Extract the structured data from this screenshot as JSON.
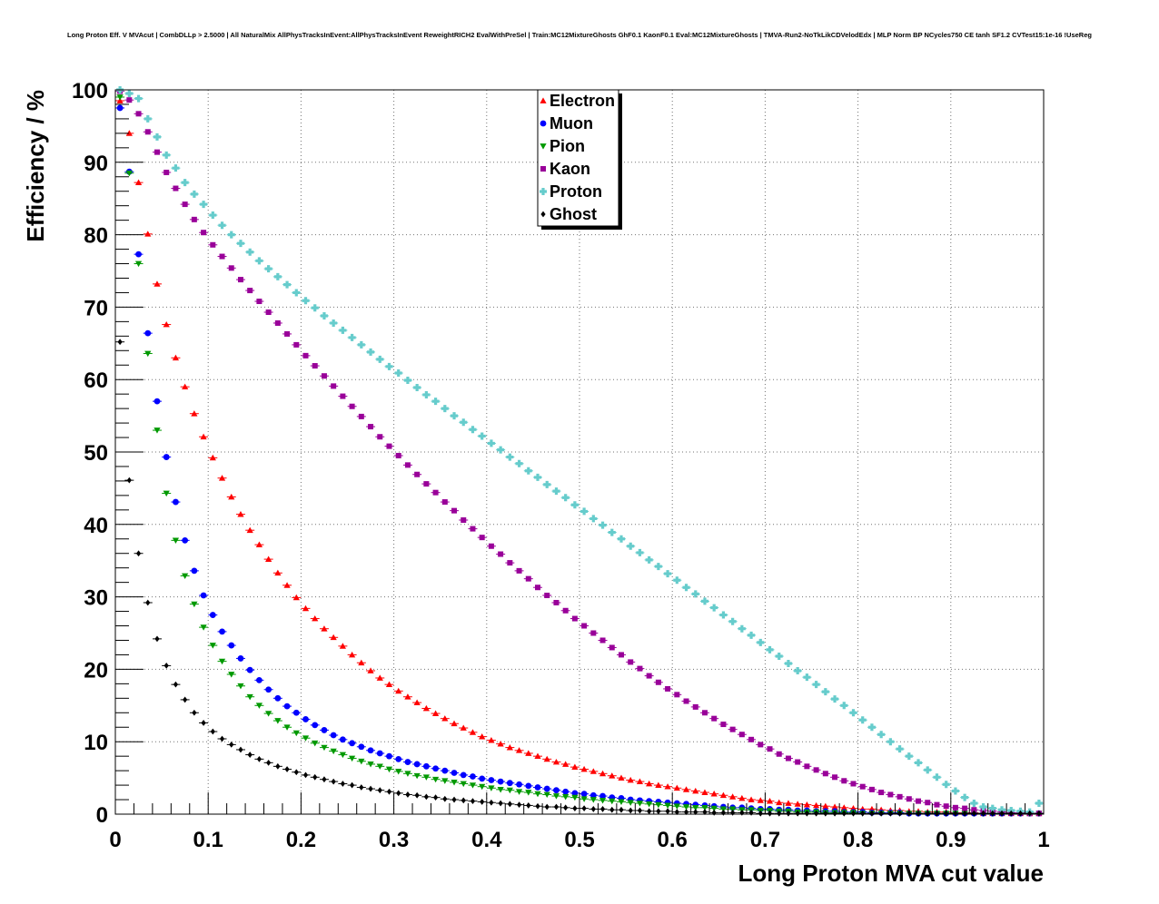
{
  "chart_data": {
    "type": "scatter",
    "title": "Long Proton Eff. V MVAcut | CombDLLp > 2.5000 | All NaturalMix AllPhysTracksInEvent:AllPhysTracksInEvent ReweightRICH2 EvalWithPreSel | Train:MC12MixtureGhosts GhF0.1 KaonF0.1 Eval:MC12MixtureGhosts | TMVA-Run2-NoTkLikCDVelodEdx | MLP Norm BP NCycles750 CE tanh SF1.2 CVTest15:1e-16 !UseReg",
    "xlabel": "Long Proton MVA cut value",
    "ylabel": "Efficiency / %",
    "xlim": [
      0,
      1
    ],
    "ylim": [
      0,
      100
    ],
    "grid": true,
    "legend_position": "top-center",
    "x_ticks": [
      "0",
      "0.1",
      "0.2",
      "0.3",
      "0.4",
      "0.5",
      "0.6",
      "0.7",
      "0.8",
      "0.9",
      "1"
    ],
    "y_ticks": [
      "0",
      "10",
      "20",
      "30",
      "40",
      "50",
      "60",
      "70",
      "80",
      "90",
      "100"
    ],
    "x": [
      0.005,
      0.015,
      0.025,
      0.035,
      0.045,
      0.055,
      0.065,
      0.075,
      0.085,
      0.095,
      0.105,
      0.115,
      0.125,
      0.135,
      0.145,
      0.155,
      0.165,
      0.175,
      0.185,
      0.195,
      0.205,
      0.215,
      0.225,
      0.235,
      0.245,
      0.255,
      0.265,
      0.275,
      0.285,
      0.295,
      0.305,
      0.315,
      0.325,
      0.335,
      0.345,
      0.355,
      0.365,
      0.375,
      0.385,
      0.395,
      0.405,
      0.415,
      0.425,
      0.435,
      0.445,
      0.455,
      0.465,
      0.475,
      0.485,
      0.495,
      0.505,
      0.515,
      0.525,
      0.535,
      0.545,
      0.555,
      0.565,
      0.575,
      0.585,
      0.595,
      0.605,
      0.615,
      0.625,
      0.635,
      0.645,
      0.655,
      0.665,
      0.675,
      0.685,
      0.695,
      0.705,
      0.715,
      0.725,
      0.735,
      0.745,
      0.755,
      0.765,
      0.775,
      0.785,
      0.795,
      0.805,
      0.815,
      0.825,
      0.835,
      0.845,
      0.855,
      0.865,
      0.875,
      0.885,
      0.895,
      0.905,
      0.915,
      0.925,
      0.935,
      0.945,
      0.955,
      0.965,
      0.975,
      0.985,
      0.995
    ],
    "series": [
      {
        "name": "Electron",
        "color": "#ff0000",
        "marker": "triangle-up",
        "values": [
          98.5,
          94.0,
          87.2,
          80.1,
          73.2,
          67.6,
          63.0,
          59.0,
          55.3,
          52.1,
          49.2,
          46.4,
          43.8,
          41.4,
          39.2,
          37.2,
          35.2,
          33.3,
          31.6,
          29.9,
          28.4,
          27.0,
          25.6,
          24.4,
          23.2,
          22.0,
          20.9,
          19.8,
          18.8,
          17.9,
          17.0,
          16.2,
          15.4,
          14.6,
          13.9,
          13.2,
          12.5,
          11.9,
          11.3,
          10.7,
          10.2,
          9.7,
          9.2,
          8.8,
          8.4,
          8.0,
          7.6,
          7.2,
          6.9,
          6.5,
          6.2,
          5.9,
          5.6,
          5.3,
          5.0,
          4.7,
          4.5,
          4.2,
          4.0,
          3.8,
          3.6,
          3.4,
          3.2,
          3.0,
          2.8,
          2.6,
          2.4,
          2.2,
          2.0,
          1.9,
          1.8,
          1.6,
          1.5,
          1.4,
          1.3,
          1.2,
          1.1,
          1.0,
          0.9,
          0.8,
          0.7,
          0.7,
          0.6,
          0.5,
          0.5,
          0.4,
          0.4,
          0.3,
          0.3,
          0.3,
          0.2,
          0.2,
          0.2,
          0.1,
          0.1,
          0.1,
          0.1,
          0.1,
          0.1,
          0.1
        ]
      },
      {
        "name": "Muon",
        "color": "#0000ff",
        "marker": "circle",
        "values": [
          97.5,
          88.7,
          77.3,
          66.4,
          57.0,
          49.3,
          43.1,
          37.8,
          33.6,
          30.2,
          27.5,
          25.2,
          23.3,
          21.5,
          19.9,
          18.5,
          17.2,
          16.0,
          14.9,
          14.0,
          13.1,
          12.3,
          11.6,
          10.9,
          10.3,
          9.8,
          9.3,
          8.8,
          8.4,
          8.0,
          7.6,
          7.2,
          6.9,
          6.6,
          6.3,
          6.0,
          5.7,
          5.4,
          5.2,
          4.9,
          4.7,
          4.5,
          4.3,
          4.1,
          3.9,
          3.7,
          3.5,
          3.3,
          3.1,
          2.9,
          2.8,
          2.6,
          2.5,
          2.3,
          2.2,
          2.0,
          1.9,
          1.8,
          1.7,
          1.6,
          1.5,
          1.4,
          1.3,
          1.2,
          1.1,
          1.0,
          0.9,
          0.9,
          0.8,
          0.7,
          0.7,
          0.6,
          0.6,
          0.5,
          0.5,
          0.4,
          0.4,
          0.4,
          0.3,
          0.3,
          0.3,
          0.2,
          0.2,
          0.2,
          0.2,
          0.1,
          0.1,
          0.1,
          0.1,
          0.1,
          0.1,
          0.1,
          0.1,
          0.1,
          0.1,
          0.1,
          0.1,
          0.1,
          0.1,
          0.1
        ]
      },
      {
        "name": "Pion",
        "color": "#009900",
        "marker": "triangle-down",
        "values": [
          99.0,
          88.5,
          76.0,
          63.6,
          53.0,
          44.3,
          37.8,
          32.9,
          29.0,
          25.8,
          23.3,
          21.1,
          19.3,
          17.7,
          16.2,
          15.0,
          13.9,
          12.9,
          12.0,
          11.2,
          10.5,
          9.8,
          9.2,
          8.7,
          8.2,
          7.7,
          7.3,
          6.9,
          6.6,
          6.2,
          5.9,
          5.6,
          5.3,
          5.1,
          4.8,
          4.6,
          4.4,
          4.2,
          4.0,
          3.8,
          3.6,
          3.4,
          3.3,
          3.1,
          3.0,
          2.8,
          2.7,
          2.5,
          2.4,
          2.3,
          2.1,
          2.0,
          1.9,
          1.8,
          1.7,
          1.6,
          1.5,
          1.4,
          1.3,
          1.2,
          1.1,
          1.0,
          0.9,
          0.9,
          0.8,
          0.7,
          0.7,
          0.6,
          0.6,
          0.5,
          0.5,
          0.4,
          0.4,
          0.3,
          0.3,
          0.3,
          0.2,
          0.2,
          0.2,
          0.2,
          0.1,
          0.1,
          0.1,
          0.1,
          0.1,
          0.1,
          0.1,
          0.1,
          0.1,
          0.1,
          0.1,
          0.1,
          0.1,
          0.1,
          0.1,
          0.1,
          0.1,
          0.1,
          0.1,
          0.1
        ]
      },
      {
        "name": "Kaon",
        "color": "#990099",
        "marker": "square",
        "values": [
          99.8,
          98.6,
          96.7,
          94.2,
          91.4,
          88.6,
          86.4,
          84.2,
          82.1,
          80.3,
          78.6,
          77.0,
          75.4,
          73.8,
          72.3,
          70.8,
          69.3,
          67.8,
          66.3,
          64.8,
          63.3,
          61.9,
          60.5,
          59.1,
          57.7,
          56.3,
          54.9,
          53.5,
          52.1,
          50.8,
          49.5,
          48.2,
          46.9,
          45.6,
          44.4,
          43.1,
          41.9,
          40.6,
          39.4,
          38.2,
          37.0,
          35.9,
          34.7,
          33.6,
          32.5,
          31.3,
          30.2,
          29.2,
          28.1,
          27.0,
          26.0,
          25.0,
          24.0,
          23.0,
          22.0,
          21.0,
          20.1,
          19.1,
          18.2,
          17.3,
          16.5,
          15.6,
          14.8,
          14.0,
          13.2,
          12.4,
          11.7,
          11.0,
          10.3,
          9.6,
          9.0,
          8.3,
          7.7,
          7.2,
          6.6,
          6.1,
          5.6,
          5.1,
          4.6,
          4.2,
          3.8,
          3.4,
          3.0,
          2.7,
          2.4,
          2.1,
          1.8,
          1.6,
          1.3,
          1.1,
          0.9,
          0.8,
          0.6,
          0.5,
          0.4,
          0.3,
          0.2,
          0.2,
          0.1,
          0.1
        ]
      },
      {
        "name": "Proton",
        "color": "#66cccc",
        "marker": "cross",
        "values": [
          100.0,
          99.5,
          98.8,
          96.0,
          93.5,
          91.0,
          89.2,
          87.2,
          85.6,
          84.2,
          82.7,
          81.3,
          80.0,
          78.8,
          77.6,
          76.4,
          75.3,
          74.2,
          73.1,
          72.0,
          70.9,
          69.9,
          68.8,
          67.8,
          66.8,
          65.8,
          64.8,
          63.8,
          62.8,
          61.8,
          60.9,
          59.9,
          58.9,
          57.9,
          57.0,
          56.0,
          55.0,
          54.1,
          53.1,
          52.2,
          51.2,
          50.3,
          49.3,
          48.4,
          47.4,
          46.5,
          45.5,
          44.6,
          43.7,
          42.7,
          41.8,
          40.8,
          39.9,
          38.9,
          38.0,
          37.0,
          36.1,
          35.1,
          34.2,
          33.2,
          32.3,
          31.3,
          30.4,
          29.4,
          28.5,
          27.5,
          26.6,
          25.6,
          24.7,
          23.7,
          22.7,
          21.8,
          20.8,
          19.8,
          18.9,
          17.9,
          16.9,
          15.9,
          15.0,
          14.0,
          13.0,
          12.0,
          11.0,
          10.0,
          9.0,
          8.0,
          7.1,
          6.1,
          5.1,
          4.1,
          3.2,
          2.3,
          1.5,
          1.0,
          0.8,
          0.6,
          0.5,
          0.4,
          0.3,
          1.5
        ]
      },
      {
        "name": "Ghost",
        "color": "#000000",
        "marker": "diamond",
        "values": [
          65.2,
          46.1,
          36.0,
          29.2,
          24.2,
          20.5,
          17.9,
          15.8,
          14.0,
          12.6,
          11.4,
          10.4,
          9.6,
          8.9,
          8.2,
          7.6,
          7.1,
          6.6,
          6.2,
          5.8,
          5.4,
          5.1,
          4.8,
          4.5,
          4.2,
          4.0,
          3.7,
          3.5,
          3.3,
          3.1,
          2.9,
          2.7,
          2.6,
          2.4,
          2.3,
          2.1,
          2.0,
          1.9,
          1.8,
          1.7,
          1.6,
          1.5,
          1.4,
          1.3,
          1.2,
          1.1,
          1.0,
          1.0,
          0.9,
          0.8,
          0.8,
          0.7,
          0.7,
          0.6,
          0.6,
          0.5,
          0.5,
          0.4,
          0.4,
          0.4,
          0.3,
          0.3,
          0.3,
          0.3,
          0.2,
          0.2,
          0.2,
          0.2,
          0.2,
          0.1,
          0.1,
          0.1,
          0.1,
          0.1,
          0.1,
          0.1,
          0.1,
          0.1,
          0.1,
          0.1,
          0.1,
          0.1,
          0.1,
          0.1,
          0.1,
          0.1,
          0.1,
          0.1,
          0.1,
          0.1,
          0.1,
          0.1,
          0.1,
          0.1,
          0.1,
          0.1,
          0.1,
          0.1,
          0.1,
          0.1
        ]
      }
    ]
  }
}
